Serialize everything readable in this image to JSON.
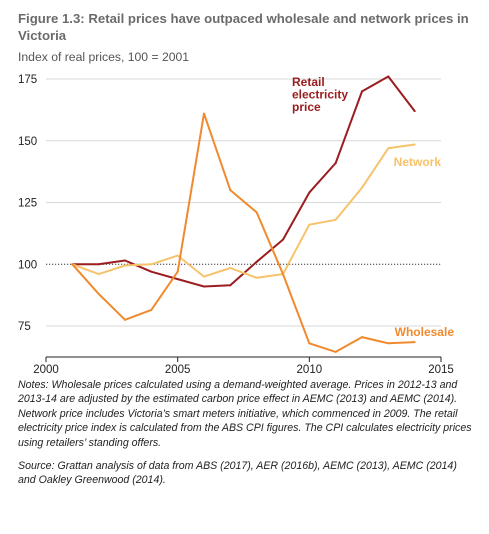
{
  "figure": {
    "title": "Figure 1.3: Retail prices have outpaced wholesale and network prices in Victoria",
    "subtitle": "Index of real prices, 100 = 2001",
    "notes": "Notes: Wholesale prices calculated using a demand-weighted average. Prices in 2012-13 and 2013-14 are adjusted by the estimated carbon price effect in AEMC (2013) and AEMC (2014). Network price includes Victoria’s smart meters initiative, which commenced in 2009. The retail electricity price index is calculated from the ABS CPI figures. The CPI calculates electricity prices using retailers’ standing offers.",
    "source": "Source: Grattan analysis of data from ABS (2017), AER (2016b), AEMC (2013), AEMC (2014) and Oakley Greenwood (2014)."
  },
  "chart_data": {
    "type": "line",
    "xlim": [
      2000,
      2015
    ],
    "ylim": [
      65,
      175
    ],
    "x_ticks": [
      2000,
      2005,
      2010,
      2015
    ],
    "y_ticks": [
      75,
      100,
      125,
      150,
      175
    ],
    "reference_line": 100,
    "grid": "horizontal",
    "series": [
      {
        "name": "Retail electricity price",
        "color": "#9b1d20",
        "x": [
          2001,
          2002,
          2003,
          2004,
          2005,
          2006,
          2007,
          2008,
          2009,
          2010,
          2011,
          2012,
          2013,
          2014
        ],
        "values": [
          100,
          100,
          101.5,
          97,
          94,
          91,
          91.5,
          101,
          110,
          129,
          141,
          170,
          176,
          162
        ]
      },
      {
        "name": "Network",
        "color": "#f6c36a",
        "x": [
          2001,
          2002,
          2003,
          2004,
          2005,
          2006,
          2007,
          2008,
          2009,
          2010,
          2011,
          2012,
          2013,
          2014
        ],
        "values": [
          100,
          96,
          99.5,
          100,
          103.5,
          95,
          98.5,
          94.5,
          96,
          116,
          118,
          131,
          147,
          148.5
        ]
      },
      {
        "name": "Wholesale",
        "color": "#f08a2e",
        "x": [
          2001,
          2002,
          2003,
          2004,
          2005,
          2006,
          2007,
          2008,
          2009,
          2010,
          2011,
          2012,
          2013,
          2014
        ],
        "values": [
          100,
          88,
          77.5,
          81.5,
          97,
          161,
          130,
          121,
          96,
          68,
          64.5,
          70.5,
          68,
          68.5
        ]
      }
    ],
    "labels": [
      {
        "lines": [
          "Retail",
          "electricity",
          "price"
        ],
        "color": "#9b1d20"
      },
      {
        "lines": [
          "Network"
        ],
        "color": "#f6c36a"
      },
      {
        "lines": [
          "Wholesale"
        ],
        "color": "#f08a2e"
      }
    ]
  }
}
